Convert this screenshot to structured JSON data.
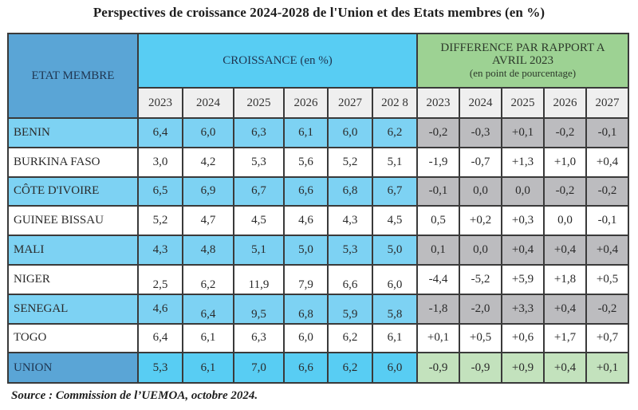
{
  "title": "Perspectives de croissance 2024-2028 de l'Union et des Etats membres (en %)",
  "table": {
    "header": {
      "state_label": "ETAT MEMBRE",
      "growth_label": "CROISSANCE (en %)",
      "diff_label_line1": "DIFFERENCE PAR RAPPORT A",
      "diff_label_line2": "AVRIL 2023",
      "diff_label_sub": "(en point de pourcentage)",
      "growth_years": [
        "2023",
        "2024",
        "2025",
        "2026",
        "2027",
        "202 8"
      ],
      "diff_years": [
        "2023",
        "2024",
        "2025",
        "2026",
        "2027"
      ]
    },
    "rows": [
      {
        "state": "BENIN",
        "growth": [
          "6,4",
          "6,0",
          "6,3",
          "6,1",
          "6,0",
          "6,2"
        ],
        "diff": [
          "-0,2",
          "-0,3",
          "+0,1",
          "-0,2",
          "-0,1"
        ]
      },
      {
        "state": "BURKINA FASO",
        "growth": [
          "3,0",
          "4,2",
          "5,3",
          "5,6",
          "5,2",
          "5,1"
        ],
        "diff": [
          "-1,9",
          "-0,7",
          "+1,3",
          "+1,0",
          "+0,4"
        ]
      },
      {
        "state": "CÔTE  D'IVOIRE",
        "growth": [
          "6,5",
          "6,9",
          "6,7",
          "6,6",
          "6,8",
          "6,7"
        ],
        "diff": [
          "-0,1",
          "0,0",
          "0,0",
          "-0,2",
          "-0,2"
        ]
      },
      {
        "state": "GUINEE BISSAU",
        "growth": [
          "5,2",
          "4,7",
          "4,5",
          "4,6",
          "4,3",
          "4,5"
        ],
        "diff": [
          "0,5",
          "+0,2",
          "+0,3",
          "0,0",
          "-0,1"
        ]
      },
      {
        "state": "MALI",
        "growth": [
          "4,3",
          "4,8",
          "5,1",
          "5,0",
          "5,3",
          "5,0"
        ],
        "diff": [
          "0,1",
          "0,0",
          "+0,4",
          "+0,4",
          "+0,4"
        ]
      },
      {
        "state": "NIGER",
        "growth": [
          "2,5",
          "6,2",
          "11,9",
          "7,9",
          "6,6",
          "6,0"
        ],
        "diff": [
          "-4,4",
          "-5,2",
          "+5,9",
          "+1,8",
          "+0,5"
        ]
      },
      {
        "state": "SENEGAL",
        "growth": [
          "4,6",
          "6,4",
          "9,5",
          "6,8",
          "5,9",
          "5,8"
        ],
        "diff": [
          "-1,8",
          "-2,0",
          "+3,3",
          "+0,4",
          "-0,2"
        ]
      },
      {
        "state": "TOGO",
        "growth": [
          "6,4",
          "6,1",
          "6,3",
          "6,0",
          "6,2",
          "6,1"
        ],
        "diff": [
          "+0,1",
          "+0,5",
          "+0,6",
          "+1,7",
          "+0,7"
        ]
      }
    ],
    "union": {
      "state": "UNION",
      "growth": [
        "5,3",
        "6,1",
        "7,0",
        "6,6",
        "6,2",
        "6,0"
      ],
      "diff": [
        "-0,9",
        "-0,9",
        "+0,9",
        "+0,4",
        "+0,1"
      ]
    }
  },
  "source": "Source : Commission de l’UEMOA, octobre 2024.",
  "colors": {
    "state_header": "#5aa5d6",
    "growth_header": "#58cdf3",
    "diff_header": "#9dd293",
    "highlight_row": "#7dd2f3",
    "highlight_diff": "#bcbcbf",
    "union_diff": "#c3e2bd"
  }
}
